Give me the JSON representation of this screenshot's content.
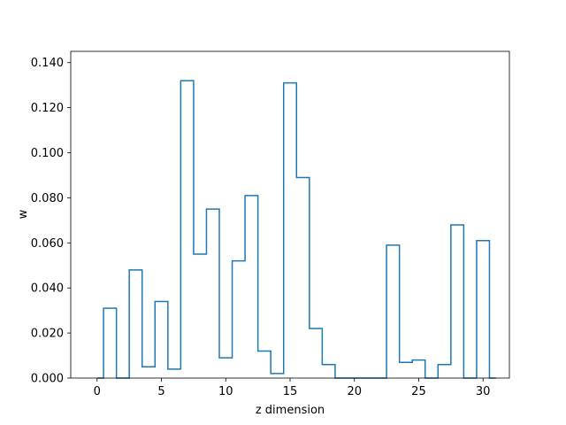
{
  "chart_data": {
    "type": "step",
    "xlabel": "z dimension",
    "ylabel": "w",
    "xlim": [
      -2.05,
      32.05
    ],
    "ylim": [
      0,
      0.145
    ],
    "x_ticks": [
      0,
      5,
      10,
      15,
      20,
      25,
      30
    ],
    "x_tick_labels": [
      "0",
      "5",
      "10",
      "15",
      "20",
      "25",
      "30"
    ],
    "y_ticks": [
      0,
      0.02,
      0.04,
      0.06,
      0.08,
      0.1,
      0.12,
      0.14
    ],
    "y_tick_labels": [
      "0.000",
      "0.020",
      "0.040",
      "0.060",
      "0.080",
      "0.100",
      "0.120",
      "0.140"
    ],
    "grid": false,
    "x": [
      0,
      1,
      2,
      3,
      4,
      5,
      6,
      7,
      8,
      9,
      10,
      11,
      12,
      13,
      14,
      15,
      16,
      17,
      18,
      19,
      20,
      21,
      22,
      23,
      24,
      25,
      26,
      27,
      28,
      29,
      30,
      31
    ],
    "values": [
      0.0,
      0.031,
      0.0,
      0.048,
      0.005,
      0.034,
      0.004,
      0.132,
      0.055,
      0.075,
      0.009,
      0.052,
      0.081,
      0.012,
      0.002,
      0.131,
      0.089,
      0.022,
      0.006,
      0.0,
      0.0,
      0.0,
      0.0,
      0.059,
      0.007,
      0.008,
      0.0,
      0.006,
      0.068,
      0.0,
      0.061,
      0.0
    ],
    "series_color": "#1f77b4"
  }
}
